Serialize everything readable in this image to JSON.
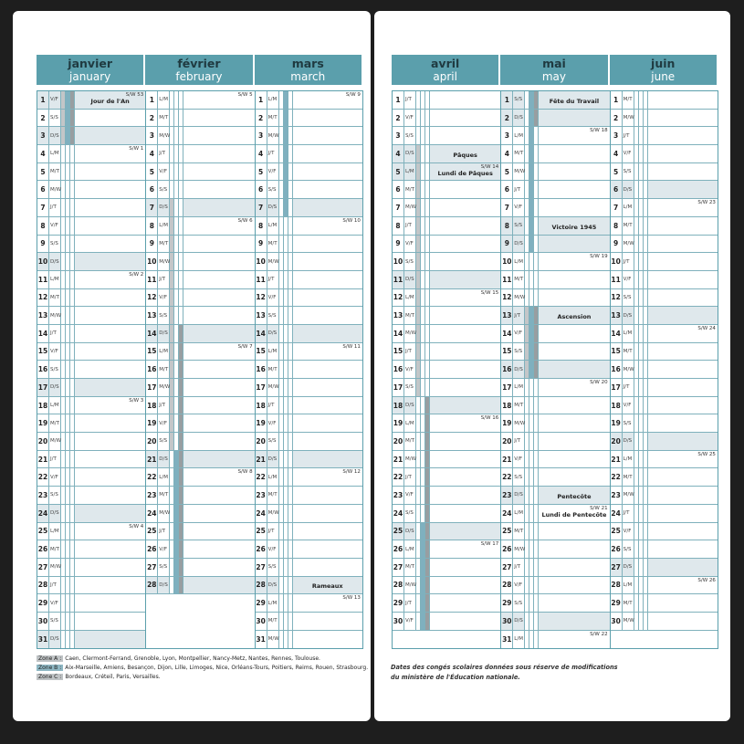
{
  "colors": {
    "header": "#5b9fac",
    "grid": "#7fb1bc",
    "shade": "#dfe8ec",
    "zoneA": "#c3c6c8",
    "zoneB": "#7fb0bf",
    "zoneC": "#989ea1"
  },
  "pages": [
    {
      "months": [
        {
          "fr": "janvier",
          "en": "january",
          "days": [
            [
              1,
              "V/F"
            ],
            [
              2,
              "S/S"
            ],
            [
              3,
              "D/S"
            ],
            [
              4,
              "L/M"
            ],
            [
              5,
              "M/T"
            ],
            [
              6,
              "M/W"
            ],
            [
              7,
              "J/T"
            ],
            [
              8,
              "V/F"
            ],
            [
              9,
              "S/S"
            ],
            [
              10,
              "D/S"
            ],
            [
              11,
              "L/M"
            ],
            [
              12,
              "M/T"
            ],
            [
              13,
              "M/W"
            ],
            [
              14,
              "J/T"
            ],
            [
              15,
              "V/F"
            ],
            [
              16,
              "S/S"
            ],
            [
              17,
              "D/S"
            ],
            [
              18,
              "L/M"
            ],
            [
              19,
              "M/T"
            ],
            [
              20,
              "M/W"
            ],
            [
              21,
              "J/T"
            ],
            [
              22,
              "V/F"
            ],
            [
              23,
              "S/S"
            ],
            [
              24,
              "D/S"
            ],
            [
              25,
              "L/M"
            ],
            [
              26,
              "M/T"
            ],
            [
              27,
              "M/W"
            ],
            [
              28,
              "J/T"
            ],
            [
              29,
              "V/F"
            ],
            [
              30,
              "S/S"
            ],
            [
              31,
              "D/S"
            ]
          ],
          "weeks": {
            "1": "S/W 53",
            "4": "S/W 1",
            "11": "S/W 2",
            "18": "S/W 3",
            "25": "S/W 4"
          },
          "holidays": {
            "1": "Jour de l'An"
          },
          "zones": {
            "A": [
              [
                1,
                3
              ]
            ],
            "B": [
              [
                1,
                3
              ]
            ],
            "C": [
              [
                1,
                3
              ]
            ]
          }
        },
        {
          "fr": "février",
          "en": "february",
          "days": [
            [
              1,
              "L/M"
            ],
            [
              2,
              "M/T"
            ],
            [
              3,
              "M/W"
            ],
            [
              4,
              "J/T"
            ],
            [
              5,
              "V/F"
            ],
            [
              6,
              "S/S"
            ],
            [
              7,
              "D/S"
            ],
            [
              8,
              "L/M"
            ],
            [
              9,
              "M/T"
            ],
            [
              10,
              "M/W"
            ],
            [
              11,
              "J/T"
            ],
            [
              12,
              "V/F"
            ],
            [
              13,
              "S/S"
            ],
            [
              14,
              "D/S"
            ],
            [
              15,
              "L/M"
            ],
            [
              16,
              "M/T"
            ],
            [
              17,
              "M/W"
            ],
            [
              18,
              "J/T"
            ],
            [
              19,
              "V/F"
            ],
            [
              20,
              "S/S"
            ],
            [
              21,
              "D/S"
            ],
            [
              22,
              "L/M"
            ],
            [
              23,
              "M/T"
            ],
            [
              24,
              "M/W"
            ],
            [
              25,
              "J/T"
            ],
            [
              26,
              "V/F"
            ],
            [
              27,
              "S/S"
            ],
            [
              28,
              "D/S"
            ]
          ],
          "weeks": {
            "1": "S/W 5",
            "8": "S/W 6",
            "15": "S/W 7",
            "22": "S/W 8"
          },
          "holidays": {},
          "zones": {
            "A": [
              [
                7,
                20
              ]
            ],
            "B": [
              [
                21,
                28
              ]
            ],
            "C": [
              [
                14,
                28
              ]
            ]
          }
        },
        {
          "fr": "mars",
          "en": "march",
          "days": [
            [
              1,
              "L/M"
            ],
            [
              2,
              "M/T"
            ],
            [
              3,
              "M/W"
            ],
            [
              4,
              "J/T"
            ],
            [
              5,
              "V/F"
            ],
            [
              6,
              "S/S"
            ],
            [
              7,
              "D/S"
            ],
            [
              8,
              "L/M"
            ],
            [
              9,
              "M/T"
            ],
            [
              10,
              "M/W"
            ],
            [
              11,
              "J/T"
            ],
            [
              12,
              "V/F"
            ],
            [
              13,
              "S/S"
            ],
            [
              14,
              "D/S"
            ],
            [
              15,
              "L/M"
            ],
            [
              16,
              "M/T"
            ],
            [
              17,
              "M/W"
            ],
            [
              18,
              "J/T"
            ],
            [
              19,
              "V/F"
            ],
            [
              20,
              "S/S"
            ],
            [
              21,
              "D/S"
            ],
            [
              22,
              "L/M"
            ],
            [
              23,
              "M/T"
            ],
            [
              24,
              "M/W"
            ],
            [
              25,
              "J/T"
            ],
            [
              26,
              "V/F"
            ],
            [
              27,
              "S/S"
            ],
            [
              28,
              "D/S"
            ],
            [
              29,
              "L/M"
            ],
            [
              30,
              "M/T"
            ],
            [
              31,
              "M/W"
            ]
          ],
          "weeks": {
            "1": "S/W 9",
            "8": "S/W 10",
            "15": "S/W 11",
            "22": "S/W 12",
            "29": "S/W 13"
          },
          "holidays": {
            "28": "Rameaux"
          },
          "zones": {
            "A": [],
            "B": [
              [
                1,
                7
              ]
            ],
            "C": []
          }
        }
      ],
      "legend": [
        {
          "zone": "Zone A :",
          "cities": "Caen, Clermont-Ferrand, Grenoble, Lyon, Montpellier, Nancy-Metz, Nantes, Rennes, Toulouse."
        },
        {
          "zone": "Zone B :",
          "cities": "Aix-Marseille, Amiens, Besançon, Dijon, Lille, Limoges, Nice, Orléans-Tours, Poitiers, Reims, Rouen, Strasbourg."
        },
        {
          "zone": "Zone C :",
          "cities": "Bordeaux, Créteil, Paris, Versailles."
        }
      ]
    },
    {
      "months": [
        {
          "fr": "avril",
          "en": "april",
          "days": [
            [
              1,
              "J/T"
            ],
            [
              2,
              "V/F"
            ],
            [
              3,
              "S/S"
            ],
            [
              4,
              "D/S"
            ],
            [
              5,
              "L/M"
            ],
            [
              6,
              "M/T"
            ],
            [
              7,
              "M/W"
            ],
            [
              8,
              "J/T"
            ],
            [
              9,
              "V/F"
            ],
            [
              10,
              "S/S"
            ],
            [
              11,
              "D/S"
            ],
            [
              12,
              "L/M"
            ],
            [
              13,
              "M/T"
            ],
            [
              14,
              "M/W"
            ],
            [
              15,
              "J/T"
            ],
            [
              16,
              "V/F"
            ],
            [
              17,
              "S/S"
            ],
            [
              18,
              "D/S"
            ],
            [
              19,
              "L/M"
            ],
            [
              20,
              "M/T"
            ],
            [
              21,
              "M/W"
            ],
            [
              22,
              "J/T"
            ],
            [
              23,
              "V/F"
            ],
            [
              24,
              "S/S"
            ],
            [
              25,
              "D/S"
            ],
            [
              26,
              "L/M"
            ],
            [
              27,
              "M/T"
            ],
            [
              28,
              "M/W"
            ],
            [
              29,
              "J/T"
            ],
            [
              30,
              "V/F"
            ]
          ],
          "weeks": {
            "5": "S/W 14",
            "12": "S/W 15",
            "19": "S/W 16",
            "26": "S/W 17"
          },
          "holidays": {
            "4": "Pâques",
            "5": "Lundi de Pâques"
          },
          "zones": {
            "A": [
              [
                4,
                17
              ]
            ],
            "B": [
              [
                25,
                30
              ]
            ],
            "C": [
              [
                18,
                30
              ]
            ]
          }
        },
        {
          "fr": "mai",
          "en": "may",
          "days": [
            [
              1,
              "S/S"
            ],
            [
              2,
              "D/S"
            ],
            [
              3,
              "L/M"
            ],
            [
              4,
              "M/T"
            ],
            [
              5,
              "M/W"
            ],
            [
              6,
              "J/T"
            ],
            [
              7,
              "V/F"
            ],
            [
              8,
              "S/S"
            ],
            [
              9,
              "D/S"
            ],
            [
              10,
              "L/M"
            ],
            [
              11,
              "M/T"
            ],
            [
              12,
              "M/W"
            ],
            [
              13,
              "J/T"
            ],
            [
              14,
              "V/F"
            ],
            [
              15,
              "S/S"
            ],
            [
              16,
              "D/S"
            ],
            [
              17,
              "L/M"
            ],
            [
              18,
              "M/T"
            ],
            [
              19,
              "M/W"
            ],
            [
              20,
              "J/T"
            ],
            [
              21,
              "V/F"
            ],
            [
              22,
              "S/S"
            ],
            [
              23,
              "D/S"
            ],
            [
              24,
              "L/M"
            ],
            [
              25,
              "M/T"
            ],
            [
              26,
              "M/W"
            ],
            [
              27,
              "J/T"
            ],
            [
              28,
              "V/F"
            ],
            [
              29,
              "S/S"
            ],
            [
              30,
              "D/S"
            ],
            [
              31,
              "L/M"
            ]
          ],
          "weeks": {
            "3": "S/W 18",
            "10": "S/W 19",
            "17": "S/W 20",
            "24": "S/W 21",
            "31": "S/W 22"
          },
          "holidays": {
            "1": "Fête du Travail",
            "8": "Victoire 1945",
            "13": "Ascension",
            "23": "Pentecôte",
            "24": "Lundi de Pentecôte"
          },
          "zones": {
            "A": [
              [
                13,
                16
              ]
            ],
            "B": [
              [
                1,
                9
              ],
              [
                13,
                16
              ]
            ],
            "C": [
              [
                1,
                2
              ],
              [
                13,
                16
              ]
            ]
          }
        },
        {
          "fr": "juin",
          "en": "june",
          "days": [
            [
              1,
              "M/T"
            ],
            [
              2,
              "M/W"
            ],
            [
              3,
              "J/T"
            ],
            [
              4,
              "V/F"
            ],
            [
              5,
              "S/S"
            ],
            [
              6,
              "D/S"
            ],
            [
              7,
              "L/M"
            ],
            [
              8,
              "M/T"
            ],
            [
              9,
              "M/W"
            ],
            [
              10,
              "J/T"
            ],
            [
              11,
              "V/F"
            ],
            [
              12,
              "S/S"
            ],
            [
              13,
              "D/S"
            ],
            [
              14,
              "L/M"
            ],
            [
              15,
              "M/T"
            ],
            [
              16,
              "M/W"
            ],
            [
              17,
              "J/T"
            ],
            [
              18,
              "V/F"
            ],
            [
              19,
              "S/S"
            ],
            [
              20,
              "D/S"
            ],
            [
              21,
              "L/M"
            ],
            [
              22,
              "M/T"
            ],
            [
              23,
              "M/W"
            ],
            [
              24,
              "J/T"
            ],
            [
              25,
              "V/F"
            ],
            [
              26,
              "S/S"
            ],
            [
              27,
              "D/S"
            ],
            [
              28,
              "L/M"
            ],
            [
              29,
              "M/T"
            ],
            [
              30,
              "M/W"
            ]
          ],
          "weeks": {
            "7": "S/W 23",
            "14": "S/W 24",
            "21": "S/W 25",
            "28": "S/W 26"
          },
          "holidays": {},
          "zones": {
            "A": [],
            "B": [],
            "C": []
          }
        }
      ],
      "footnote": [
        "Dates des congés scolaires données sous réserve de modifications",
        "du ministère de l'Éducation nationale."
      ]
    }
  ]
}
